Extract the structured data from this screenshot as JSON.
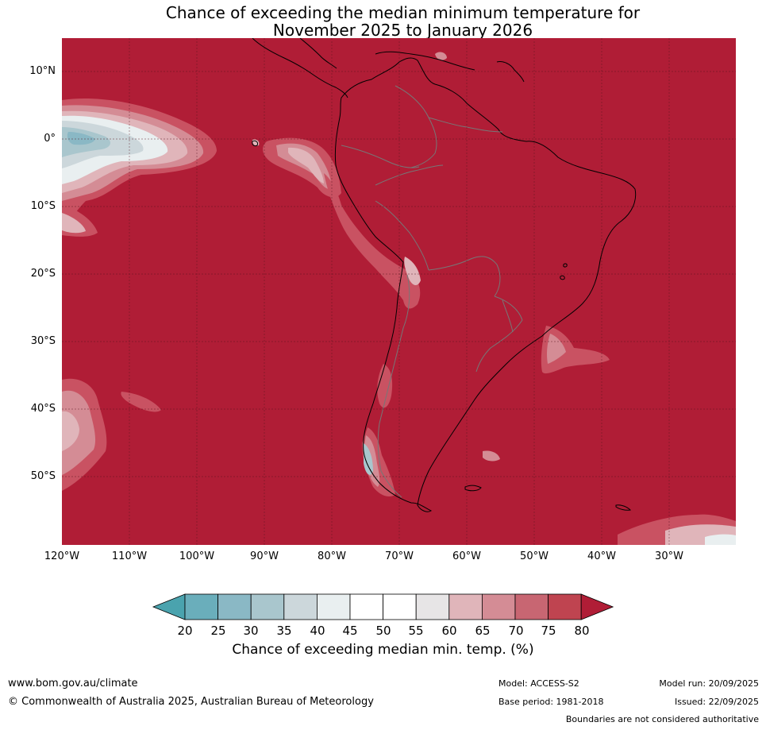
{
  "title": {
    "line1": "Chance of exceeding the median minimum temperature for",
    "line2": "November 2025 to January 2026"
  },
  "map": {
    "lat_range": [
      -60,
      15
    ],
    "lon_range": [
      -120,
      -20
    ],
    "lat_labels": [
      "10°N",
      "0°",
      "10°S",
      "20°S",
      "30°S",
      "40°S",
      "50°S"
    ],
    "lon_labels": [
      "120°W",
      "110°W",
      "100°W",
      "90°W",
      "80°W",
      "70°W",
      "60°W",
      "50°W",
      "40°W",
      "30°W"
    ],
    "background_class": "above 80%"
  },
  "colorbar": {
    "ticks": [
      "20",
      "25",
      "30",
      "35",
      "40",
      "45",
      "50",
      "55",
      "60",
      "65",
      "70",
      "75",
      "80"
    ],
    "colors": [
      "#4aa3ae",
      "#6aaebb",
      "#8ab8c5",
      "#a9c6cd",
      "#ccd7db",
      "#e9eff0",
      "#ffffff",
      "#ffffff",
      "#e7e5e6",
      "#e0b5ba",
      "#d48c95",
      "#c86672",
      "#bf4450",
      "#b01d36"
    ],
    "label": "Chance of exceeding median min. temp. (%)"
  },
  "colors": {
    "high": "#b01d36",
    "c75": "#c95262",
    "c70": "#d48c95",
    "c65": "#e0b5ba",
    "neutral": "#e9eff0",
    "low": "#a9c6cd",
    "grid": "#55141f"
  },
  "footer": {
    "website": "www.bom.gov.au/climate",
    "copyright": "© Commonwealth of Australia 2025, Australian Bureau of Meteorology",
    "model": "Model: ACCESS-S2",
    "base_period": "Base period: 1981-2018",
    "model_run": "Model run: 20/09/2025",
    "issued": "Issued: 22/09/2025",
    "disclaimer": "Boundaries are not considered authoritative"
  }
}
